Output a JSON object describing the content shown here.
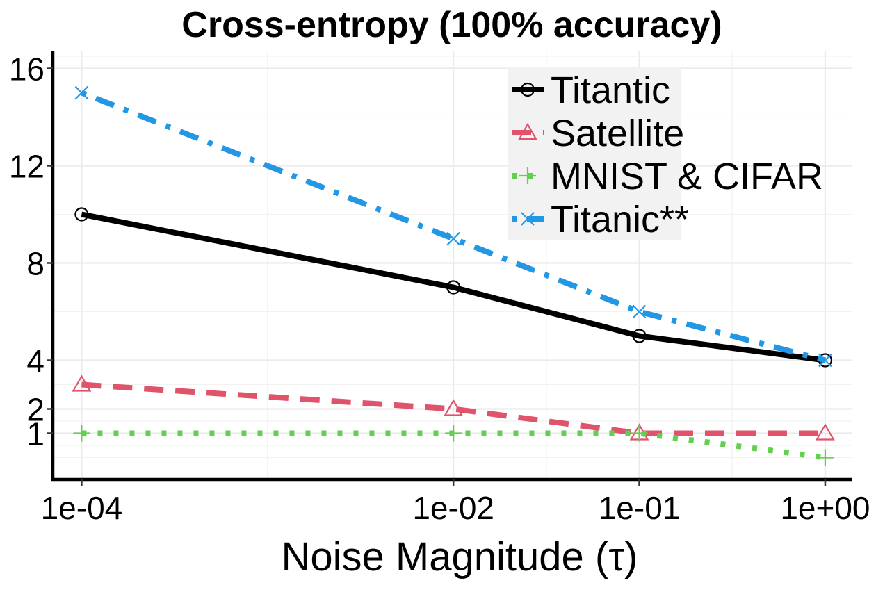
{
  "chart_data": {
    "type": "line",
    "title": "Cross-entropy (100% accuracy)",
    "xlabel": "Noise Magnitude (τ)",
    "ylabel": "",
    "x_scale": "log10",
    "x": [
      0.0001,
      0.01,
      0.1,
      1
    ],
    "x_ticks": [
      {
        "value": 0.0001,
        "label": "1e-04"
      },
      {
        "value": 0.01,
        "label": "1e-02"
      },
      {
        "value": 0.1,
        "label": "1e-01"
      },
      {
        "value": 1,
        "label": "1e+00"
      }
    ],
    "y_ticks": [
      {
        "value": 1,
        "label": "1"
      },
      {
        "value": 2,
        "label": "2"
      },
      {
        "value": 4,
        "label": "4"
      },
      {
        "value": 8,
        "label": "8"
      },
      {
        "value": 12,
        "label": "12"
      },
      {
        "value": 16,
        "label": "16"
      }
    ],
    "ylim": [
      -0.9,
      16.7
    ],
    "xlim": [
      7e-05,
      1.4
    ],
    "grid": true,
    "legend_position": "top-right",
    "series": [
      {
        "name": "Titantic",
        "values": [
          10,
          7,
          5,
          4
        ],
        "color": "#000000",
        "marker": "circle",
        "linestyle": "solid"
      },
      {
        "name": "Satellite",
        "values": [
          3,
          2,
          1,
          1
        ],
        "color": "#DF536B",
        "marker": "triangle",
        "linestyle": "dashed"
      },
      {
        "name": "MNIST & CIFAR",
        "values": [
          1,
          1,
          1,
          0
        ],
        "color": "#61D04F",
        "marker": "plus",
        "linestyle": "dotted"
      },
      {
        "name": "Titanic**",
        "values": [
          15,
          9,
          6,
          4
        ],
        "color": "#2297E6",
        "marker": "cross",
        "linestyle": "dotdash"
      }
    ]
  }
}
